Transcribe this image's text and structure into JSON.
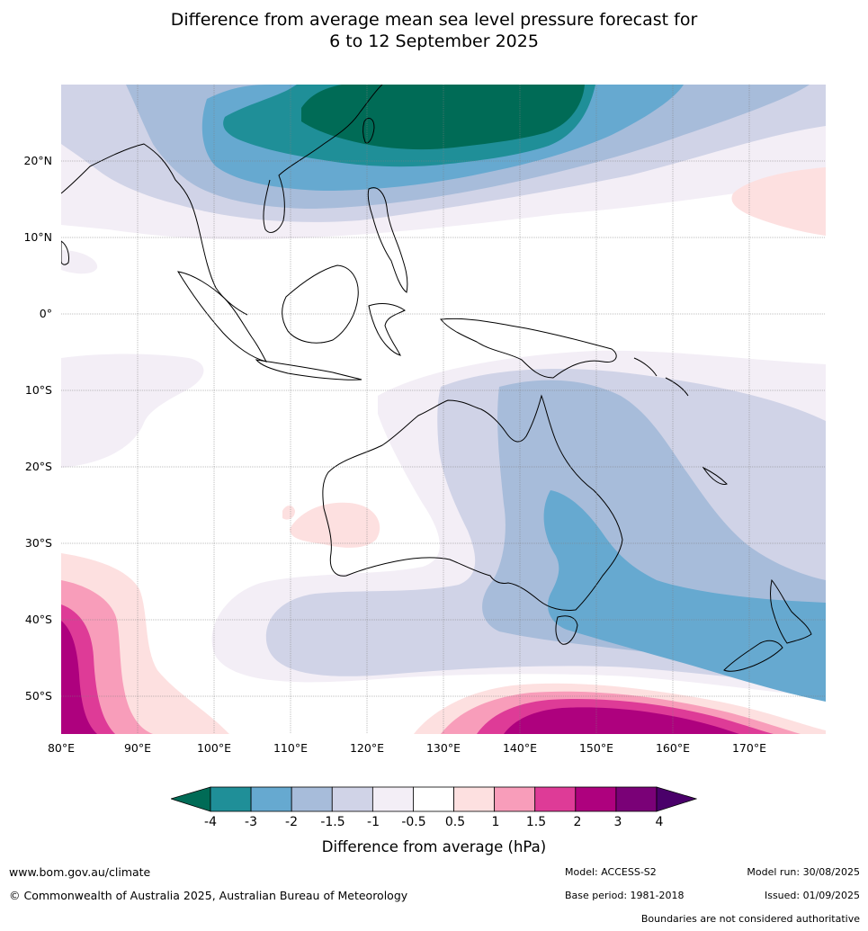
{
  "title": {
    "line1": "Difference from average mean sea level pressure forecast for",
    "line2": "6 to 12 September 2025"
  },
  "map": {
    "lat_labels": [
      "20°N",
      "10°N",
      "0°",
      "10°S",
      "20°S",
      "30°S",
      "40°S",
      "50°S"
    ],
    "lon_labels": [
      "80°E",
      "90°E",
      "100°E",
      "110°E",
      "120°E",
      "130°E",
      "140°E",
      "150°E",
      "160°E",
      "170°E"
    ],
    "colors": {
      "lt_-3": "#006b56",
      "-3_-2": "#1f8f98",
      "-2_-1.5": "#66a9d0",
      "-1.5_-1": "#a7bcda",
      "-1_-0.5": "#d0d3e7",
      "-0.5_0.5": "#f3eef6",
      "neutral": "#ffffff",
      "0.5_1": "#fde0e0",
      "1_1.5": "#f89dba",
      "1.5_2": "#de3b97",
      "2_3": "#ae017e",
      "3_4": "#7a0177",
      "gt_4": "#4a006a"
    }
  },
  "colorbar": {
    "labels": [
      "-4",
      "-3",
      "-2",
      "-1.5",
      "-1",
      "-0.5",
      "0.5",
      "1",
      "1.5",
      "2",
      "3",
      "4"
    ],
    "colors": [
      "#1f8f98",
      "#66a9d0",
      "#a7bcda",
      "#d0d3e7",
      "#f3eef6",
      "#ffffff",
      "#fde0e0",
      "#f89dba",
      "#de3b97",
      "#ae017e",
      "#7a0177"
    ],
    "low_extend_color": "#006b56",
    "high_extend_color": "#4a006a",
    "title": "Difference from average (hPa)"
  },
  "footer": {
    "website": "www.bom.gov.au/climate",
    "copyright": "© Commonwealth of Australia 2025, Australian Bureau of Meteorology",
    "model": "Model: ACCESS-S2",
    "base_period": "Base period: 1981-2018",
    "model_run": "Model run: 30/08/2025",
    "issued": "Issued: 01/09/2025",
    "disclaimer": "Boundaries are not considered authoritative"
  }
}
